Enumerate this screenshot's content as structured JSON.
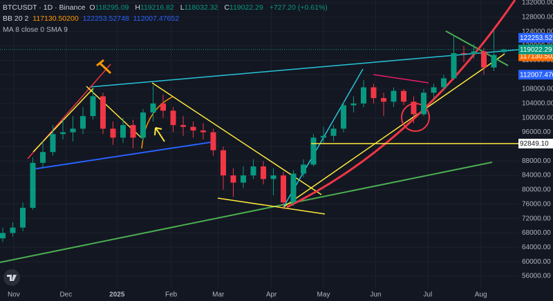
{
  "header": {
    "symbol": "BTCUSDT · 1D · Binance",
    "o": "O",
    "h": "H",
    "l": "L",
    "c": "C",
    "change": "+727.20 (+0.61%)",
    "bb": "BB 20 2",
    "ma": "MA 8 close 0 SMA 9"
  },
  "chart_data": {
    "type": "candlestick",
    "open": [
      66500,
      68000,
      69500,
      75000,
      87500,
      90500,
      95500,
      96000,
      97000,
      100500,
      106000,
      97000,
      94500,
      98000,
      94500,
      101500,
      104000,
      102000,
      98000,
      97500,
      96500,
      96000,
      91000,
      84000,
      82000,
      84000,
      86500,
      83000,
      84000,
      76500,
      84500,
      87000,
      94500,
      95000,
      97000,
      103500,
      104000,
      108500,
      105500,
      104500,
      107500,
      104500,
      101000,
      107000,
      108500,
      111000,
      118000,
      117800,
      118500,
      114000,
      118295.09
    ],
    "high": [
      69500,
      71000,
      76500,
      89000,
      93500,
      98000,
      99500,
      100500,
      103000,
      108000,
      107000,
      99000,
      100000,
      99500,
      102500,
      109000,
      106500,
      103000,
      100500,
      99000,
      98500,
      97000,
      92000,
      86000,
      86500,
      88500,
      88000,
      86000,
      85000,
      85500,
      88500,
      95500,
      97500,
      98000,
      104500,
      106000,
      110500,
      109500,
      107000,
      108500,
      108000,
      106000,
      108000,
      109500,
      112000,
      123000,
      120000,
      120500,
      119500,
      124500,
      119216.82
    ],
    "low": [
      65500,
      67000,
      68500,
      74500,
      86000,
      89500,
      94000,
      93500,
      95500,
      99500,
      95500,
      92500,
      93000,
      91500,
      93500,
      99000,
      100000,
      96000,
      95000,
      94500,
      94000,
      89500,
      80000,
      78000,
      80500,
      83000,
      81500,
      78500,
      74500,
      75500,
      83500,
      86500,
      93000,
      93500,
      96000,
      101500,
      103000,
      104000,
      100500,
      103000,
      103500,
      98500,
      100500,
      105500,
      107500,
      110500,
      115500,
      116500,
      112000,
      113000,
      118032.32
    ],
    "close": [
      68000,
      69500,
      75000,
      87500,
      90500,
      95500,
      96000,
      97000,
      100500,
      106000,
      97000,
      94500,
      98000,
      94500,
      101500,
      104000,
      102000,
      98000,
      97500,
      96500,
      96000,
      91000,
      84000,
      82000,
      84000,
      86500,
      83000,
      84000,
      76500,
      84500,
      87000,
      94500,
      95000,
      97000,
      103500,
      104000,
      108500,
      105500,
      104500,
      107500,
      104500,
      101000,
      107000,
      108500,
      111000,
      118000,
      117800,
      118500,
      114000,
      117500,
      119022.29
    ],
    "bb": {
      "basis": {
        "value": 117130.502,
        "label": "117130.50200",
        "color": "#ff6d00"
      },
      "upper": {
        "value": 122253.52748,
        "label": "122253.52748",
        "color": "#2962ff"
      },
      "lower": {
        "value": 112007.47652,
        "label": "112007.47652",
        "color": "#2962ff"
      }
    },
    "hline": {
      "value": 92849.1,
      "label": "92849.10",
      "color": "#ffeb3b"
    },
    "ylim": [
      52540,
      132770
    ],
    "yticks": [
      {
        "value": 56000,
        "label": "56000.00"
      },
      {
        "value": 60000,
        "label": "60000.00"
      },
      {
        "value": 64000,
        "label": "64000.00"
      },
      {
        "value": 68000,
        "label": "68000.00"
      },
      {
        "value": 72000,
        "label": "72000.00"
      },
      {
        "value": 76000,
        "label": "76000.00"
      },
      {
        "value": 80000,
        "label": "80000.00"
      },
      {
        "value": 84000,
        "label": "84000.00"
      },
      {
        "value": 88000,
        "label": "88000.00"
      },
      {
        "value": 92000,
        "label": "92000.00"
      },
      {
        "value": 96000,
        "label": "96000.00"
      },
      {
        "value": 100000,
        "label": "100000.00"
      },
      {
        "value": 104000,
        "label": "104000.00"
      },
      {
        "value": 108000,
        "label": "108000.00"
      },
      {
        "value": 112000,
        "label": "112000.00"
      },
      {
        "value": 116000,
        "label": "116000.00"
      },
      {
        "value": 120000,
        "label": "120000.00"
      },
      {
        "value": 124000,
        "label": "124000.00"
      },
      {
        "value": 128000,
        "label": "128000.00"
      },
      {
        "value": 132000,
        "label": "132000.00"
      }
    ],
    "xticks": [
      {
        "value": 1.1,
        "label": "Nov"
      },
      {
        "value": 6.3,
        "label": "Dec"
      },
      {
        "value": 11.4,
        "label": "2025"
      },
      {
        "value": 16.8,
        "label": "Feb"
      },
      {
        "value": 21.5,
        "label": "Mar"
      },
      {
        "value": 26.8,
        "label": "Apr"
      },
      {
        "value": 32,
        "label": "May"
      },
      {
        "value": 37.2,
        "label": "Jun"
      },
      {
        "value": 42.4,
        "label": "Jul"
      },
      {
        "value": 47.7,
        "label": "Aug"
      }
    ],
    "up_color": "#089981",
    "down_color": "#f23645"
  }
}
